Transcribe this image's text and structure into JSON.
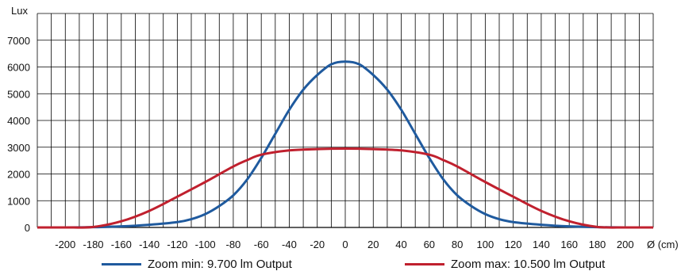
{
  "chart_data": {
    "type": "line",
    "ylabel": "Lux",
    "xlabel": "Ø (cm)",
    "xlim": [
      -220,
      220
    ],
    "ylim": [
      0,
      8000
    ],
    "x_ticks": [
      -200,
      -180,
      -160,
      -140,
      -120,
      -100,
      -80,
      -60,
      -40,
      -20,
      0,
      20,
      40,
      60,
      80,
      100,
      120,
      140,
      160,
      180,
      200
    ],
    "y_ticks": [
      0,
      1000,
      2000,
      3000,
      4000,
      5000,
      6000,
      7000
    ],
    "grid": true,
    "legend_position": "bottom",
    "series": [
      {
        "name": "Zoom min: 9.700 lm Output",
        "color": "#1f5a9e",
        "points": [
          [
            -220,
            0
          ],
          [
            -200,
            0
          ],
          [
            -180,
            10
          ],
          [
            -160,
            40
          ],
          [
            -140,
            100
          ],
          [
            -120,
            200
          ],
          [
            -110,
            310
          ],
          [
            -100,
            500
          ],
          [
            -90,
            800
          ],
          [
            -80,
            1200
          ],
          [
            -70,
            1800
          ],
          [
            -60,
            2600
          ],
          [
            -50,
            3500
          ],
          [
            -40,
            4400
          ],
          [
            -30,
            5150
          ],
          [
            -20,
            5700
          ],
          [
            -10,
            6100
          ],
          [
            0,
            6200
          ],
          [
            10,
            6100
          ],
          [
            20,
            5700
          ],
          [
            30,
            5150
          ],
          [
            40,
            4400
          ],
          [
            50,
            3500
          ],
          [
            60,
            2600
          ],
          [
            70,
            1800
          ],
          [
            80,
            1200
          ],
          [
            90,
            800
          ],
          [
            100,
            500
          ],
          [
            110,
            310
          ],
          [
            120,
            200
          ],
          [
            140,
            100
          ],
          [
            160,
            40
          ],
          [
            180,
            10
          ],
          [
            200,
            0
          ],
          [
            220,
            0
          ]
        ]
      },
      {
        "name": "Zoom max: 10.500 lm Output",
        "color": "#c0202e",
        "points": [
          [
            -220,
            0
          ],
          [
            -200,
            0
          ],
          [
            -180,
            20
          ],
          [
            -160,
            230
          ],
          [
            -140,
            620
          ],
          [
            -120,
            1150
          ],
          [
            -100,
            1700
          ],
          [
            -80,
            2280
          ],
          [
            -70,
            2520
          ],
          [
            -60,
            2720
          ],
          [
            -40,
            2880
          ],
          [
            -20,
            2930
          ],
          [
            0,
            2950
          ],
          [
            20,
            2930
          ],
          [
            40,
            2880
          ],
          [
            60,
            2720
          ],
          [
            70,
            2520
          ],
          [
            80,
            2280
          ],
          [
            100,
            1700
          ],
          [
            120,
            1150
          ],
          [
            140,
            620
          ],
          [
            160,
            230
          ],
          [
            180,
            20
          ],
          [
            200,
            0
          ],
          [
            220,
            0
          ]
        ]
      }
    ]
  }
}
